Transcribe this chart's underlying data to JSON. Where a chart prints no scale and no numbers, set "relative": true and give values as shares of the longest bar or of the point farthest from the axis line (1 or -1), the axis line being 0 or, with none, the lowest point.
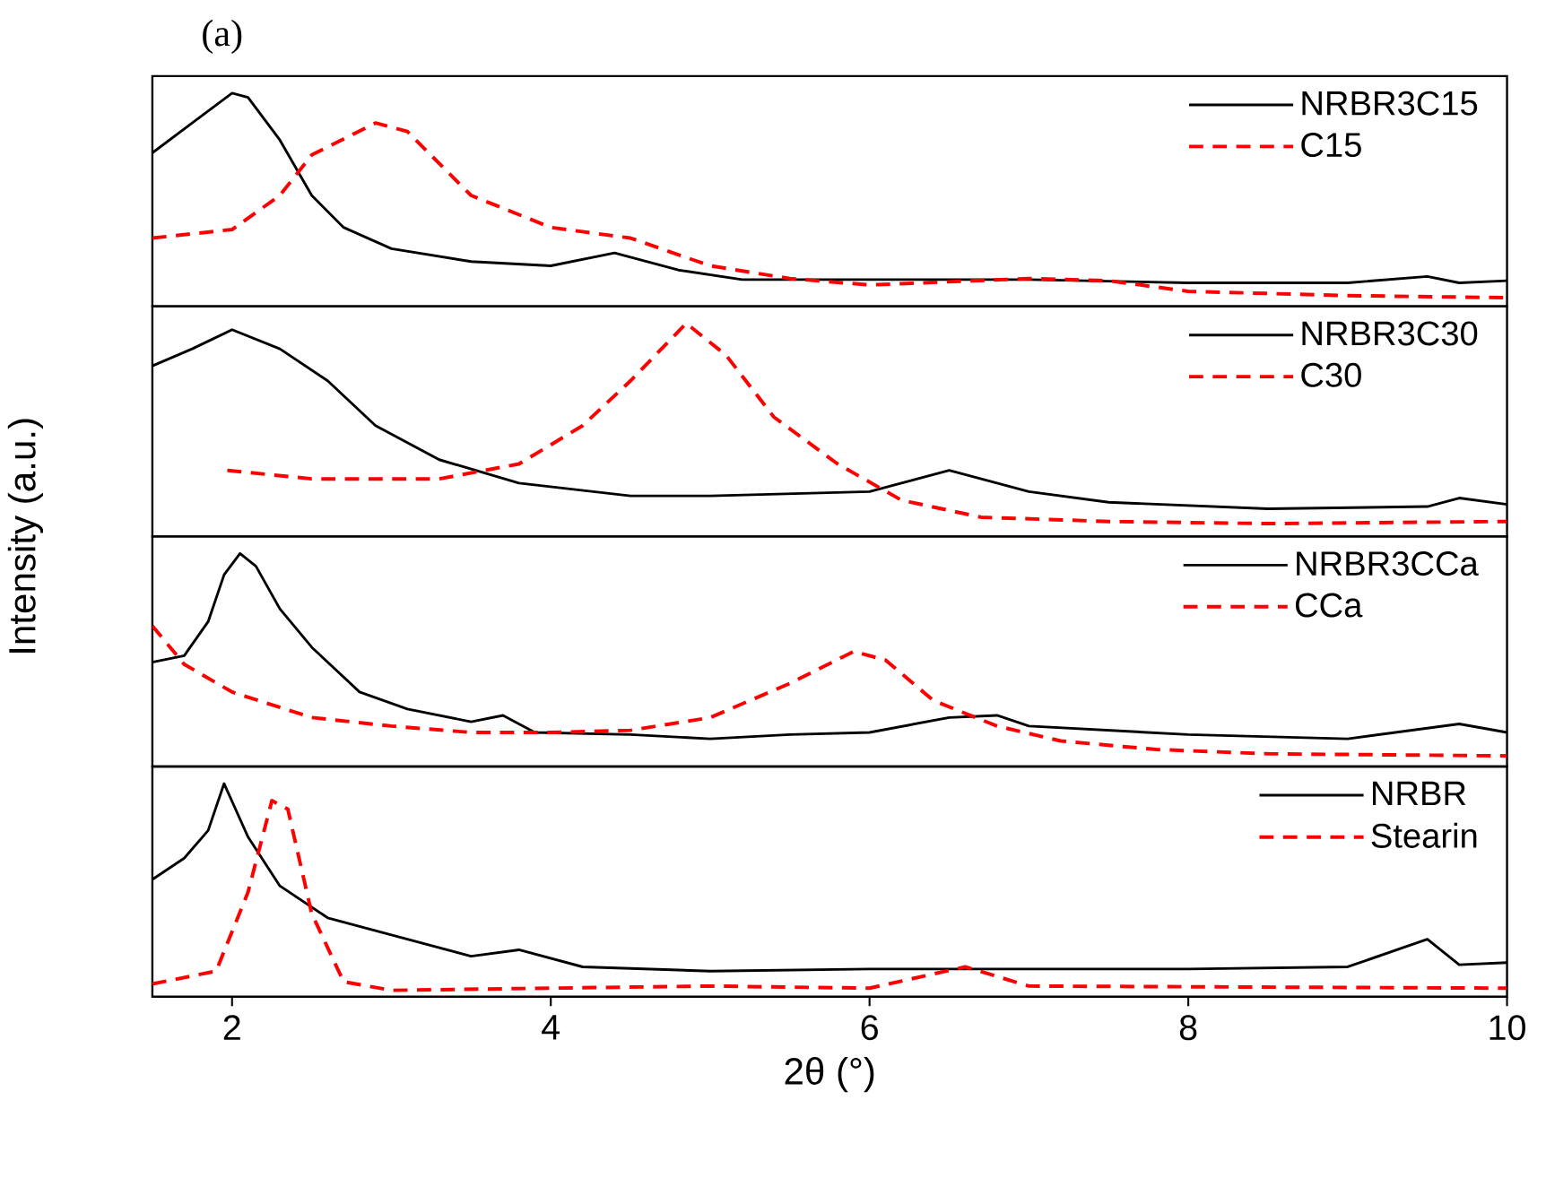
{
  "chart_data": [
    {
      "type": "line",
      "title": "(a)",
      "ylabel": "Intensity (a.u.)",
      "relative": true,
      "xlim": [
        1.5,
        10
      ],
      "tick_labels": false,
      "legend": "top right",
      "marker": "none",
      "series": [
        {
          "name": "NRBR3C15",
          "color": "#000000",
          "line_style": "solid",
          "x": [
            1.5,
            1.75,
            2.0,
            2.1,
            2.3,
            2.5,
            2.7,
            3.0,
            3.5,
            4.0,
            4.4,
            4.8,
            5.2,
            6,
            7,
            8,
            9,
            9.5,
            9.7,
            10
          ],
          "values": [
            0.72,
            0.86,
            1.0,
            0.98,
            0.78,
            0.52,
            0.37,
            0.27,
            0.21,
            0.19,
            0.25,
            0.17,
            0.125,
            0.125,
            0.125,
            0.11,
            0.11,
            0.14,
            0.11,
            0.12
          ]
        },
        {
          "name": "C15",
          "color": "#ff0000",
          "line_style": "dashed",
          "x": [
            1.5,
            2.0,
            2.3,
            2.5,
            2.9,
            3.1,
            3.5,
            4.0,
            4.5,
            5,
            5.5,
            6,
            7,
            7.5,
            8,
            9,
            10
          ],
          "values": [
            0.32,
            0.36,
            0.52,
            0.71,
            0.86,
            0.82,
            0.52,
            0.37,
            0.32,
            0.19,
            0.13,
            0.1,
            0.13,
            0.12,
            0.07,
            0.05,
            0.04
          ]
        }
      ]
    },
    {
      "type": "line",
      "relative": true,
      "xlim": [
        1.5,
        10
      ],
      "tick_labels": false,
      "legend": "top right",
      "marker": "none",
      "series": [
        {
          "name": "NRBR3C30",
          "color": "#000000",
          "line_style": "solid",
          "x": [
            1.5,
            1.75,
            2.0,
            2.3,
            2.6,
            2.9,
            3.3,
            3.8,
            4.5,
            5,
            6,
            6.2,
            6.5,
            7,
            7.5,
            8.5,
            9.5,
            9.7,
            10
          ],
          "values": [
            0.8,
            0.88,
            0.97,
            0.88,
            0.73,
            0.52,
            0.36,
            0.25,
            0.19,
            0.19,
            0.21,
            0.25,
            0.31,
            0.21,
            0.16,
            0.13,
            0.14,
            0.18,
            0.15
          ]
        },
        {
          "name": "C30",
          "color": "#ff0000",
          "line_style": "dashed",
          "x": [
            1.97,
            2.5,
            3.3,
            3.8,
            4.2,
            4.5,
            4.85,
            5.1,
            5.4,
            5.8,
            6.2,
            6.7,
            7.5,
            8.5,
            10
          ],
          "values": [
            0.31,
            0.27,
            0.27,
            0.34,
            0.52,
            0.73,
            1.0,
            0.85,
            0.56,
            0.34,
            0.17,
            0.09,
            0.07,
            0.06,
            0.07
          ]
        }
      ]
    },
    {
      "type": "line",
      "relative": true,
      "xlim": [
        1.5,
        10
      ],
      "tick_labels": false,
      "legend": "top right",
      "marker": "none",
      "series": [
        {
          "name": "NRBR3CCa",
          "color": "#000000",
          "line_style": "solid",
          "x": [
            1.5,
            1.7,
            1.85,
            1.95,
            2.05,
            2.15,
            2.3,
            2.5,
            2.8,
            3.1,
            3.5,
            3.7,
            3.9,
            4.5,
            5,
            5.5,
            6,
            6.5,
            6.8,
            7,
            8,
            9,
            9.7,
            10
          ],
          "values": [
            0.49,
            0.52,
            0.68,
            0.9,
            1.0,
            0.94,
            0.74,
            0.56,
            0.35,
            0.27,
            0.21,
            0.24,
            0.16,
            0.15,
            0.13,
            0.15,
            0.16,
            0.23,
            0.24,
            0.19,
            0.15,
            0.13,
            0.2,
            0.16
          ]
        },
        {
          "name": "CCa",
          "color": "#ff0000",
          "line_style": "dashed",
          "x": [
            1.5,
            1.7,
            2.0,
            2.5,
            3,
            3.5,
            4.0,
            4.5,
            5.0,
            5.5,
            5.9,
            6.1,
            6.4,
            6.8,
            7.2,
            7.8,
            8.5,
            10
          ],
          "values": [
            0.66,
            0.48,
            0.35,
            0.23,
            0.19,
            0.16,
            0.16,
            0.17,
            0.23,
            0.39,
            0.54,
            0.5,
            0.31,
            0.19,
            0.12,
            0.08,
            0.06,
            0.05
          ]
        }
      ]
    },
    {
      "type": "line",
      "xlabel": "2θ (°)",
      "relative": true,
      "xlim": [
        1.5,
        10
      ],
      "xticks": [
        2,
        4,
        6,
        8,
        10
      ],
      "tick_labels": "x",
      "legend": "top right",
      "marker": "none",
      "series": [
        {
          "name": "NRBR",
          "color": "#000000",
          "line_style": "solid",
          "x": [
            1.5,
            1.7,
            1.85,
            1.95,
            2.1,
            2.3,
            2.6,
            3,
            3.5,
            3.8,
            4.2,
            5,
            6,
            7,
            8,
            9,
            9.5,
            9.7,
            10
          ],
          "values": [
            0.55,
            0.65,
            0.78,
            1.0,
            0.75,
            0.52,
            0.37,
            0.29,
            0.19,
            0.22,
            0.14,
            0.12,
            0.13,
            0.13,
            0.13,
            0.14,
            0.27,
            0.15,
            0.16
          ]
        },
        {
          "name": "Stearin",
          "color": "#ff0000",
          "line_style": "dashed",
          "x": [
            1.5,
            1.9,
            2.1,
            2.25,
            2.35,
            2.5,
            2.7,
            3,
            5,
            6,
            6.6,
            7,
            10
          ],
          "values": [
            0.06,
            0.12,
            0.49,
            0.92,
            0.88,
            0.39,
            0.07,
            0.03,
            0.05,
            0.04,
            0.14,
            0.05,
            0.04
          ]
        }
      ]
    }
  ]
}
